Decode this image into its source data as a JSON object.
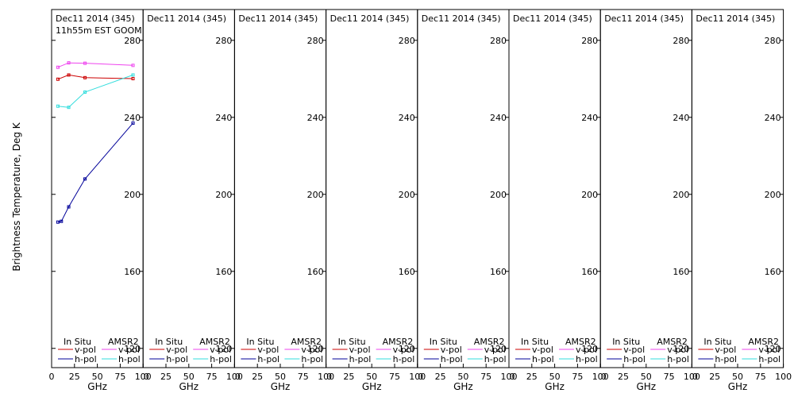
{
  "chart_data": {
    "type": "line",
    "ylabel": "Brightness Temperature, Deg K",
    "xlabel": "GHz",
    "xlim": [
      0,
      100
    ],
    "ylim": [
      110,
      296
    ],
    "xticks": [
      0,
      25,
      50,
      75,
      100
    ],
    "yticks": [
      120,
      160,
      200,
      240,
      280
    ],
    "legend": {
      "insitu_header": "In Situ",
      "amsr2_header": "AMSR2",
      "vpol": "v-pol",
      "hpol": "h-pol",
      "colors": {
        "insitu_v": "#cc0000",
        "insitu_h": "#000099",
        "amsr2_v": "#ee44ee",
        "amsr2_h": "#33dddd"
      }
    },
    "panels": [
      {
        "title": "Dec11 2014 (345)",
        "subtitle": "11h55m EST GOOM",
        "series": [
          {
            "key": "insitu_v",
            "x": [
              6.9,
              18.7,
              36.5,
              89.0
            ],
            "y": [
              259.8,
              262.0,
              260.6,
              260.1
            ]
          },
          {
            "key": "amsr2_v",
            "x": [
              6.9,
              18.7,
              36.5,
              89.0
            ],
            "y": [
              266.0,
              268.3,
              268.1,
              267.0
            ]
          },
          {
            "key": "amsr2_h",
            "x": [
              6.9,
              18.7,
              36.5,
              89.0
            ],
            "y": [
              245.8,
              245.2,
              253.1,
              262.0
            ]
          },
          {
            "key": "insitu_h",
            "x": [
              6.9,
              10.65,
              18.7,
              36.5,
              89.0
            ],
            "y": [
              185.6,
              186.0,
              193.5,
              208.0,
              237.0
            ]
          }
        ]
      },
      {
        "title": "Dec11 2014 (345)",
        "subtitle": "",
        "series": []
      },
      {
        "title": "Dec11 2014 (345)",
        "subtitle": "",
        "series": []
      },
      {
        "title": "Dec11 2014 (345)",
        "subtitle": "",
        "series": []
      },
      {
        "title": "Dec11 2014 (345)",
        "subtitle": "",
        "series": []
      },
      {
        "title": "Dec11 2014 (345)",
        "subtitle": "",
        "series": []
      },
      {
        "title": "Dec11 2014 (345)",
        "subtitle": "",
        "series": []
      },
      {
        "title": "Dec11 2014 (345)",
        "subtitle": "",
        "series": []
      }
    ]
  }
}
